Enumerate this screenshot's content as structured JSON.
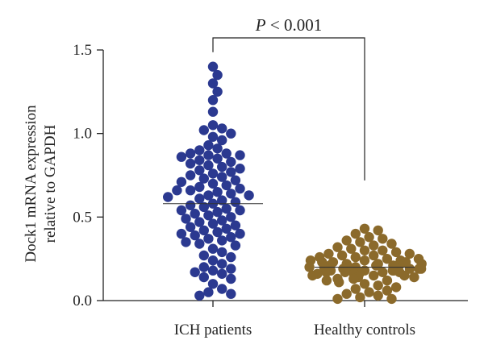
{
  "chart_data": {
    "type": "scatter",
    "title": "",
    "ylabel_lines": [
      "Dock1 mRNA expression",
      "relative to GAPDH"
    ],
    "xlabel": "",
    "ylim": [
      0,
      1.5
    ],
    "yticks": [
      0.0,
      0.5,
      1.0,
      1.5
    ],
    "ytick_labels": [
      "0.0",
      "0.5",
      "1.0",
      "1.5"
    ],
    "categories": [
      "ICH patients",
      "Healthy controls"
    ],
    "annotation": {
      "italic": "P",
      "rest": " < 0.001"
    },
    "series": [
      {
        "category": "ICH patients",
        "color": "#2b3990",
        "central_value": 0.58,
        "values": [
          1.4,
          1.35,
          1.3,
          1.25,
          1.2,
          1.13,
          1.05,
          1.03,
          1.02,
          1.0,
          0.98,
          0.96,
          0.93,
          0.91,
          0.9,
          0.88,
          0.88,
          0.87,
          0.87,
          0.86,
          0.85,
          0.84,
          0.83,
          0.82,
          0.81,
          0.8,
          0.79,
          0.78,
          0.77,
          0.76,
          0.75,
          0.74,
          0.73,
          0.72,
          0.71,
          0.7,
          0.69,
          0.68,
          0.67,
          0.66,
          0.66,
          0.65,
          0.64,
          0.63,
          0.63,
          0.62,
          0.61,
          0.6,
          0.59,
          0.58,
          0.57,
          0.56,
          0.55,
          0.54,
          0.54,
          0.53,
          0.52,
          0.51,
          0.5,
          0.49,
          0.48,
          0.47,
          0.46,
          0.45,
          0.44,
          0.43,
          0.42,
          0.41,
          0.4,
          0.4,
          0.39,
          0.38,
          0.37,
          0.36,
          0.35,
          0.34,
          0.33,
          0.31,
          0.29,
          0.27,
          0.26,
          0.24,
          0.22,
          0.2,
          0.19,
          0.18,
          0.17,
          0.16,
          0.14,
          0.13,
          0.1,
          0.07,
          0.05,
          0.04,
          0.03
        ]
      },
      {
        "category": "Healthy controls",
        "color": "#8b6a2b",
        "central_value": 0.2,
        "values": [
          0.43,
          0.42,
          0.4,
          0.38,
          0.37,
          0.36,
          0.35,
          0.34,
          0.33,
          0.32,
          0.31,
          0.3,
          0.3,
          0.29,
          0.28,
          0.28,
          0.27,
          0.27,
          0.26,
          0.26,
          0.25,
          0.25,
          0.24,
          0.24,
          0.24,
          0.23,
          0.23,
          0.23,
          0.22,
          0.22,
          0.22,
          0.21,
          0.21,
          0.21,
          0.21,
          0.2,
          0.2,
          0.2,
          0.2,
          0.2,
          0.19,
          0.19,
          0.19,
          0.19,
          0.18,
          0.18,
          0.18,
          0.18,
          0.17,
          0.17,
          0.17,
          0.17,
          0.16,
          0.16,
          0.16,
          0.15,
          0.15,
          0.15,
          0.14,
          0.14,
          0.13,
          0.13,
          0.12,
          0.12,
          0.11,
          0.1,
          0.09,
          0.08,
          0.07,
          0.06,
          0.05,
          0.04,
          0.03,
          0.02,
          0.01,
          0.01
        ]
      }
    ]
  }
}
